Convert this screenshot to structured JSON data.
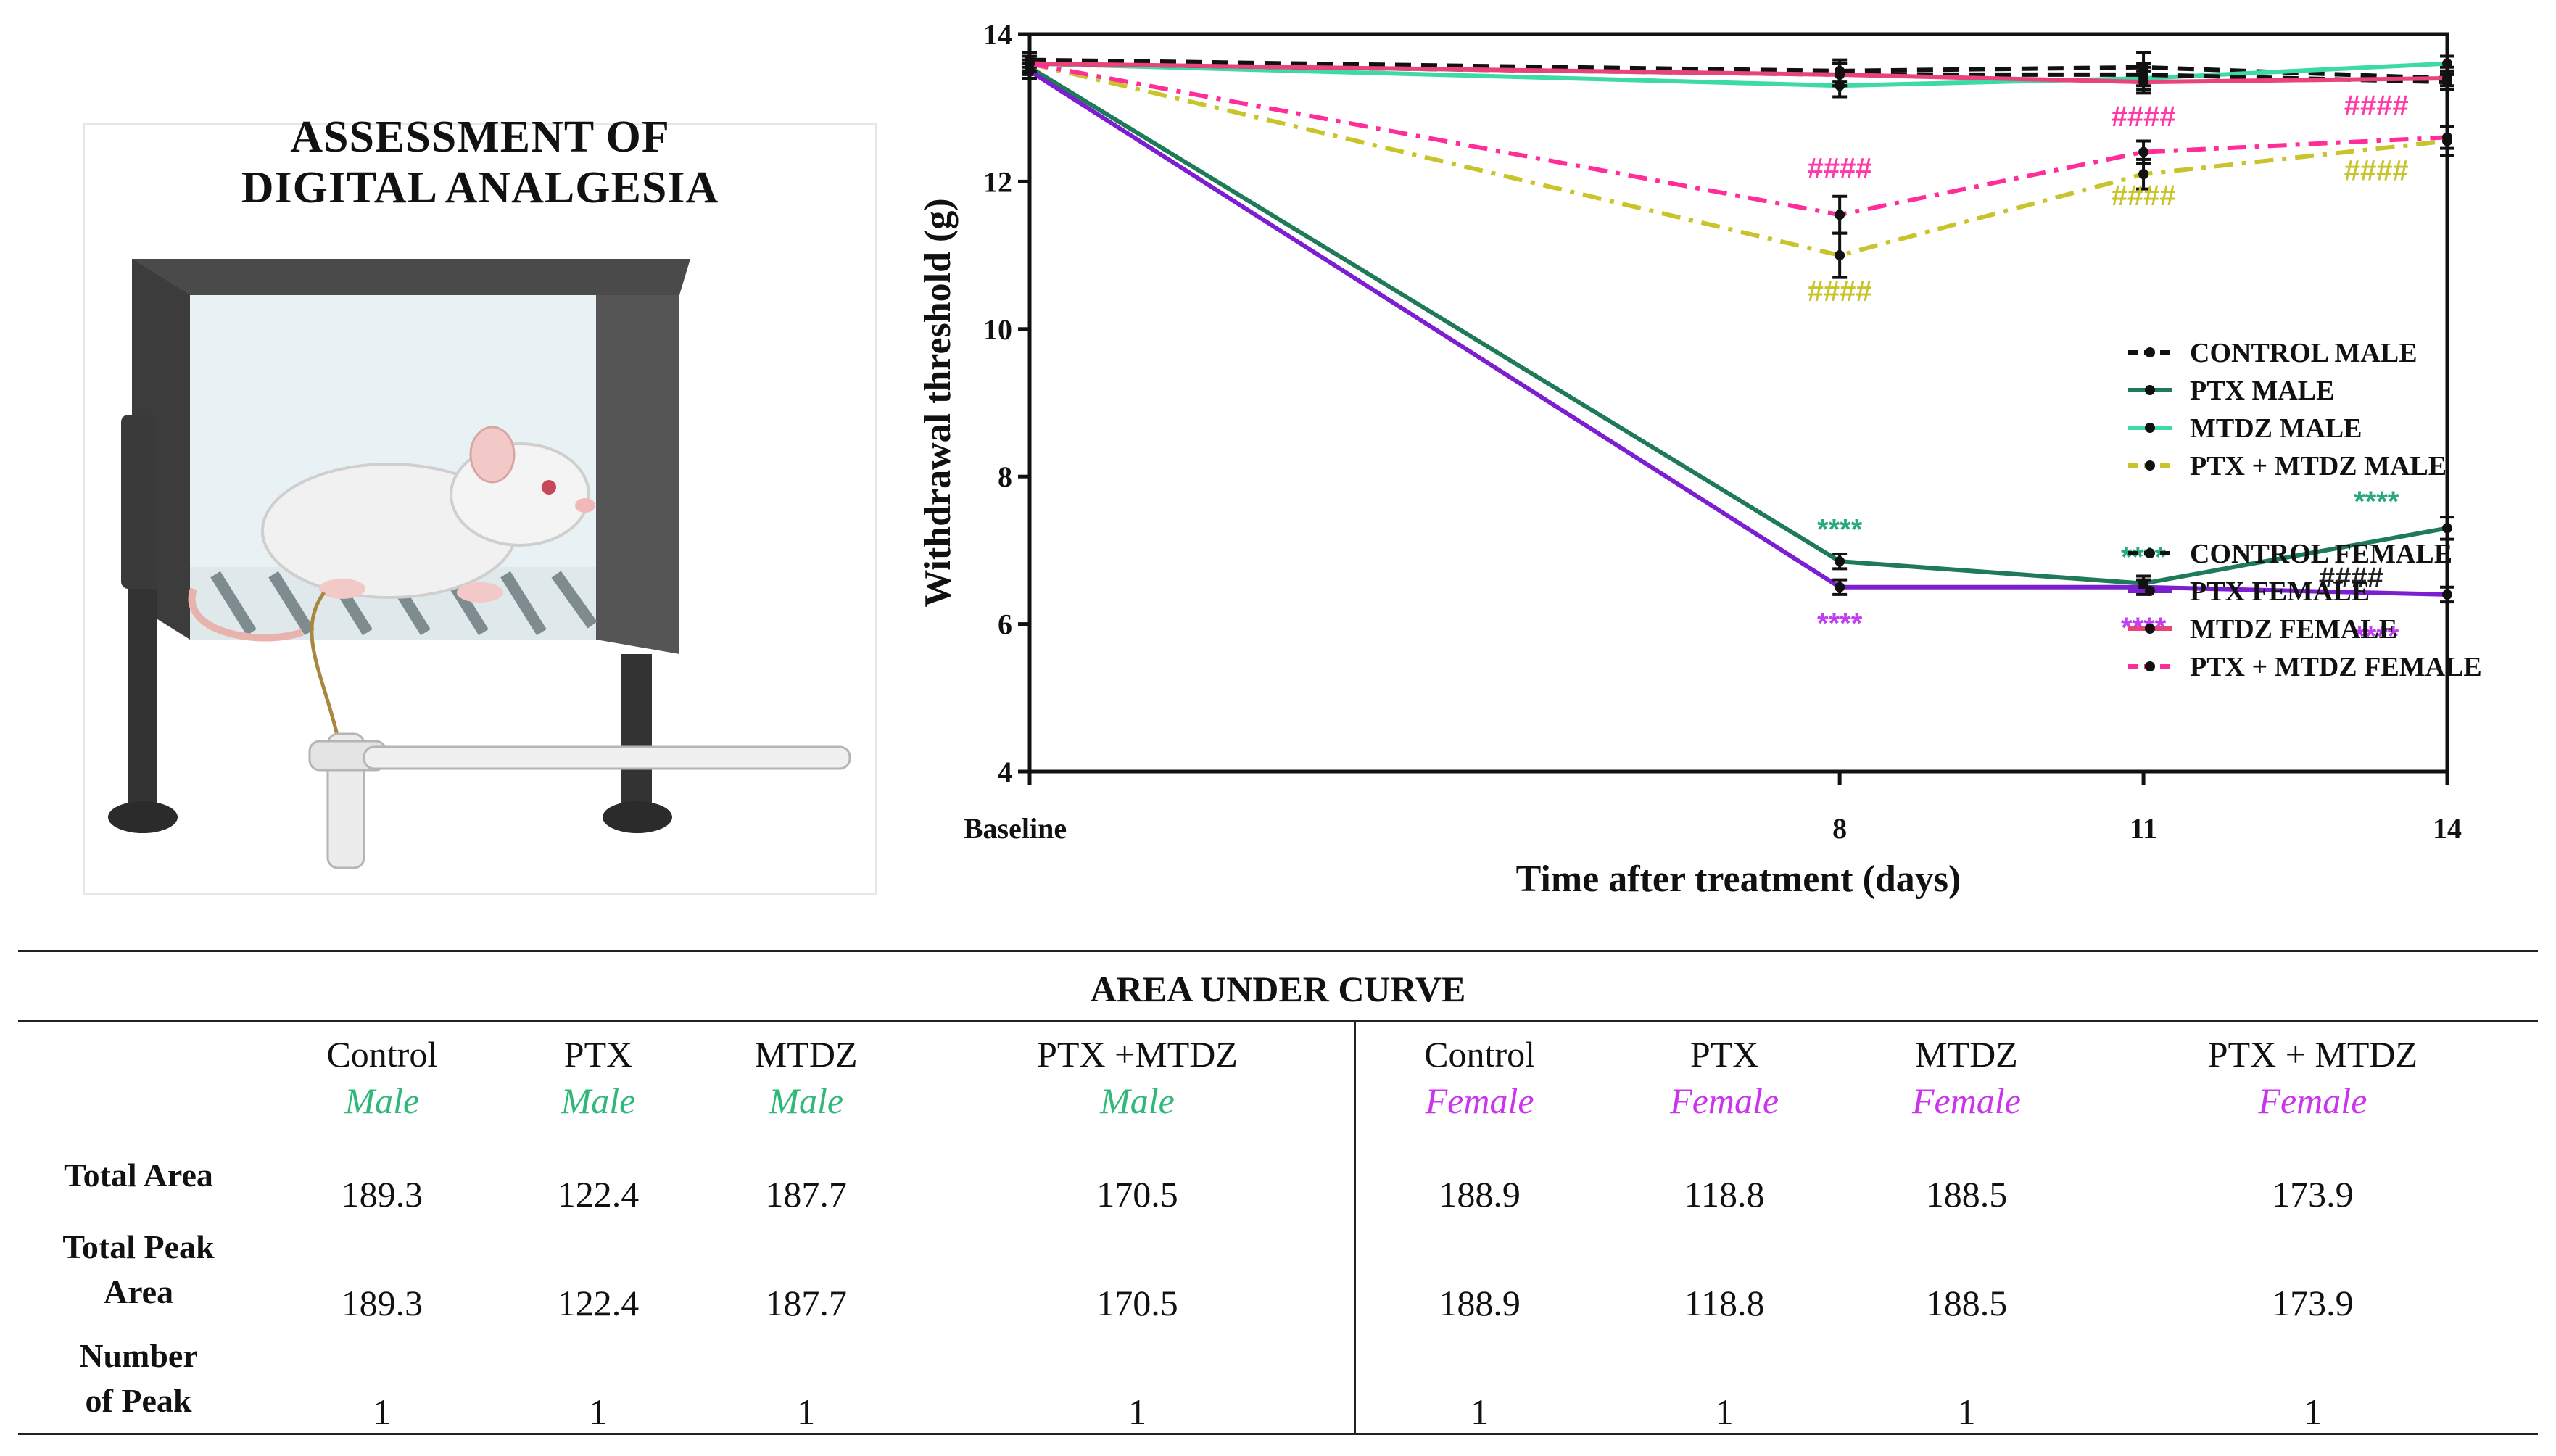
{
  "illustration": {
    "title_line1": "ASSESSMENT OF",
    "title_line2": "DIGITAL ANALGESIA"
  },
  "chart_data": {
    "type": "line",
    "categories": [
      "Baseline",
      "8",
      "11",
      "14"
    ],
    "x": [
      0,
      8,
      11,
      14
    ],
    "xlabel": "Time after treatment (days)",
    "ylabel": "Withdrawal threshold (g)",
    "ylim": [
      4,
      14
    ],
    "yticks": [
      4,
      6,
      8,
      10,
      12,
      14
    ],
    "grid": false,
    "legend_position": "right",
    "series": [
      {
        "name": "CONTROL MALE",
        "color": "#111111",
        "style": "dashed",
        "values": [
          13.65,
          13.5,
          13.55,
          13.4
        ],
        "errors": [
          0.1,
          0.15,
          0.2,
          0.15
        ]
      },
      {
        "name": "PTX MALE",
        "color": "#1e7a57",
        "style": "solid",
        "values": [
          13.55,
          6.85,
          6.55,
          7.3
        ],
        "errors": [
          0.1,
          0.1,
          0.1,
          0.15
        ]
      },
      {
        "name": "MTDZ MALE",
        "color": "#3dd9a6",
        "style": "solid",
        "values": [
          13.6,
          13.3,
          13.4,
          13.6
        ],
        "errors": [
          0.1,
          0.15,
          0.15,
          0.1
        ]
      },
      {
        "name": "PTX + MTDZ MALE",
        "color": "#c9c32c",
        "style": "dashdot",
        "values": [
          13.6,
          11.0,
          12.1,
          12.55
        ],
        "errors": [
          0.1,
          0.3,
          0.2,
          0.2
        ]
      },
      {
        "name": "CONTROL FEMALE",
        "color": "#111111",
        "style": "dashed",
        "values": [
          13.6,
          13.45,
          13.45,
          13.35
        ],
        "errors": [
          0.1,
          0.15,
          0.15,
          0.1
        ]
      },
      {
        "name": "PTX  FEMALE",
        "color": "#7b1fd0",
        "style": "solid",
        "values": [
          13.5,
          6.5,
          6.5,
          6.4
        ],
        "errors": [
          0.1,
          0.1,
          0.1,
          0.1
        ]
      },
      {
        "name": "MTDZ FEMALE",
        "color": "#e8447a",
        "style": "solid",
        "values": [
          13.6,
          13.45,
          13.35,
          13.4
        ],
        "errors": [
          0.1,
          0.15,
          0.15,
          0.1
        ]
      },
      {
        "name": "PTX + MTDZ FEMALE",
        "color": "#ff2d9a",
        "style": "dashdot",
        "values": [
          13.6,
          11.55,
          12.4,
          12.6
        ],
        "errors": [
          0.1,
          0.25,
          0.15,
          0.15
        ]
      }
    ],
    "annotations": [
      {
        "text": "####",
        "x": 8,
        "y": 12.05,
        "color": "#ff3aa8"
      },
      {
        "text": "####",
        "x": 8,
        "y": 10.38,
        "color": "#c9c32c"
      },
      {
        "text": "####",
        "x": 11,
        "y": 12.75,
        "color": "#ff3aa8"
      },
      {
        "text": "####",
        "x": 11,
        "y": 11.68,
        "color": "#c9c32c"
      },
      {
        "text": "####",
        "x": 13.3,
        "y": 12.9,
        "color": "#ff3aa8"
      },
      {
        "text": "####",
        "x": 13.3,
        "y": 12.02,
        "color": "#c9c32c"
      },
      {
        "text": "****",
        "x": 8,
        "y": 7.15,
        "color": "#2aa882"
      },
      {
        "text": "****",
        "x": 11,
        "y": 6.78,
        "color": "#2aa882"
      },
      {
        "text": "****",
        "x": 13.3,
        "y": 7.53,
        "color": "#2aa882"
      },
      {
        "text": "####",
        "x": 13.05,
        "y": 6.5,
        "color": "#222222"
      },
      {
        "text": "****",
        "x": 8,
        "y": 5.88,
        "color": "#c040f0"
      },
      {
        "text": "****",
        "x": 11,
        "y": 5.82,
        "color": "#c040f0"
      },
      {
        "text": "****",
        "x": 13.3,
        "y": 5.7,
        "color": "#c040f0"
      }
    ]
  },
  "table": {
    "title": "AREA UNDER CURVE",
    "columns": [
      {
        "group": "Control",
        "sex": "Male"
      },
      {
        "group": "PTX",
        "sex": "Male"
      },
      {
        "group": "MTDZ",
        "sex": "Male"
      },
      {
        "group": "PTX +MTDZ",
        "sex": "Male"
      },
      {
        "group": "Control",
        "sex": "Female"
      },
      {
        "group": "PTX",
        "sex": "Female"
      },
      {
        "group": "MTDZ",
        "sex": "Female"
      },
      {
        "group": "PTX + MTDZ",
        "sex": "Female"
      }
    ],
    "male_color": "#2fb87a",
    "female_color": "#cc33ee",
    "rows": [
      {
        "label_line1": "Total Area",
        "label_line2": "",
        "values": [
          "189.3",
          "122.4",
          "187.7",
          "170.5",
          "188.9",
          "118.8",
          "188.5",
          "173.9"
        ]
      },
      {
        "label_line1": "Total Peak",
        "label_line2": "Area",
        "values": [
          "189.3",
          "122.4",
          "187.7",
          "170.5",
          "188.9",
          "118.8",
          "188.5",
          "173.9"
        ]
      },
      {
        "label_line1": "Number",
        "label_line2": "of Peak",
        "values": [
          "1",
          "1",
          "1",
          "1",
          "1",
          "1",
          "1",
          "1"
        ]
      }
    ]
  }
}
